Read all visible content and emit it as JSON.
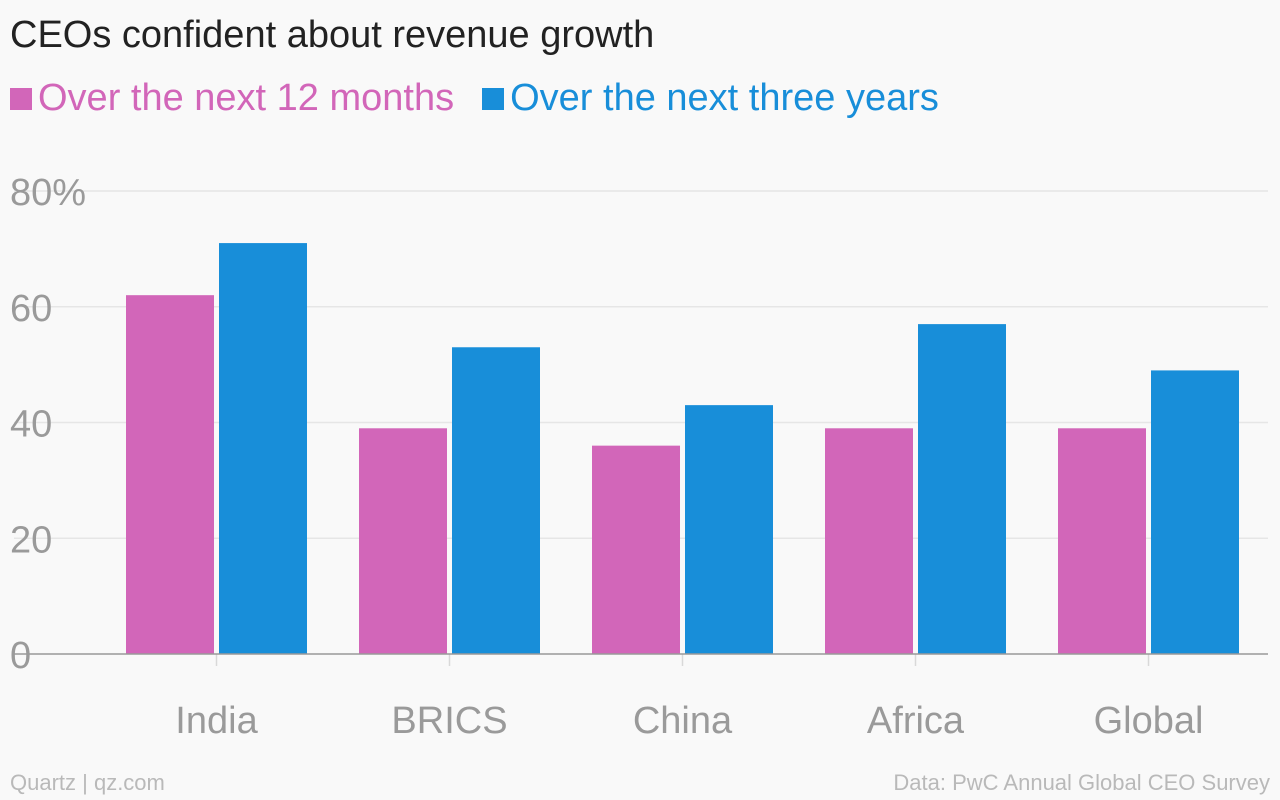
{
  "title": "CEOs confident about revenue growth",
  "footer": {
    "credit": "Quartz | qz.com",
    "source": "Data: PwC Annual Global CEO Survey"
  },
  "chart_data": {
    "type": "bar",
    "title": "CEOs confident about revenue growth",
    "categories": [
      "India",
      "BRICS",
      "China",
      "Africa",
      "Global"
    ],
    "series": [
      {
        "name": "Over the next 12 months",
        "color": "#d266b9",
        "values": [
          62,
          39,
          36,
          39,
          39
        ]
      },
      {
        "name": "Over the next three years",
        "color": "#188ed9",
        "values": [
          71,
          53,
          43,
          57,
          49
        ]
      }
    ],
    "yticks": [
      "0",
      "20",
      "40",
      "60",
      "80%"
    ],
    "ylim": [
      0,
      80
    ],
    "grid": true,
    "legend": "top-left",
    "xlabel": "",
    "ylabel": ""
  }
}
